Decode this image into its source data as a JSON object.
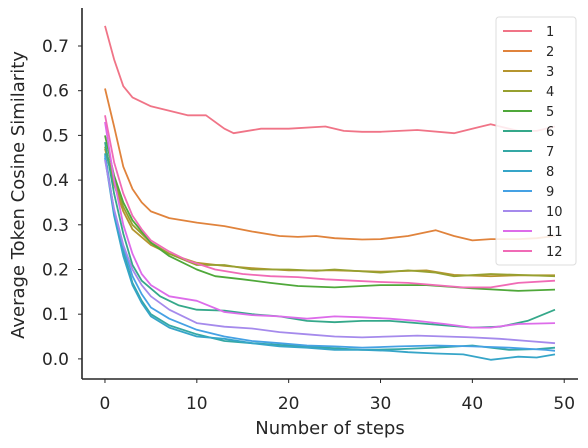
{
  "chart_data": {
    "type": "line",
    "xlabel": "Number of steps",
    "ylabel": "Average Token Cosine Similarity",
    "xlim": [
      -2.5,
      51.5
    ],
    "ylim": [
      -0.045,
      0.785
    ],
    "xticks": [
      0,
      10,
      20,
      30,
      40,
      50
    ],
    "yticks": [
      0.0,
      0.1,
      0.2,
      0.3,
      0.4,
      0.5,
      0.6,
      0.7
    ],
    "legend_position": "top-right",
    "grid": false,
    "series": [
      {
        "name": "1",
        "color": "#f07487",
        "x": [
          0,
          1,
          2,
          3,
          5,
          7,
          9,
          11,
          13,
          14,
          17,
          20,
          24,
          26,
          28,
          30,
          34,
          38,
          42,
          45,
          47,
          49
        ],
        "y": [
          0.745,
          0.67,
          0.61,
          0.585,
          0.565,
          0.555,
          0.545,
          0.545,
          0.515,
          0.505,
          0.515,
          0.515,
          0.52,
          0.51,
          0.508,
          0.508,
          0.512,
          0.505,
          0.525,
          0.51,
          0.51,
          0.52
        ]
      },
      {
        "name": "2",
        "color": "#e0833c",
        "x": [
          0,
          1,
          2,
          3,
          4,
          5,
          7,
          10,
          13,
          16,
          19,
          21,
          23,
          25,
          28,
          30,
          33,
          36,
          38,
          40,
          42,
          45,
          47,
          49
        ],
        "y": [
          0.605,
          0.52,
          0.43,
          0.38,
          0.35,
          0.33,
          0.315,
          0.305,
          0.297,
          0.285,
          0.275,
          0.273,
          0.275,
          0.27,
          0.267,
          0.268,
          0.275,
          0.288,
          0.275,
          0.265,
          0.268,
          0.268,
          0.27,
          0.275
        ]
      },
      {
        "name": "3",
        "color": "#b5952f",
        "x": [
          0,
          1,
          2,
          3,
          5,
          7,
          10,
          13,
          16,
          20,
          25,
          30,
          35,
          38,
          42,
          45,
          49
        ],
        "y": [
          0.47,
          0.39,
          0.33,
          0.29,
          0.255,
          0.235,
          0.215,
          0.208,
          0.203,
          0.198,
          0.198,
          0.195,
          0.198,
          0.188,
          0.185,
          0.187,
          0.187
        ]
      },
      {
        "name": "4",
        "color": "#97a030",
        "x": [
          0,
          1,
          2,
          3,
          5,
          7,
          10,
          13,
          16,
          20,
          23,
          25,
          30,
          33,
          36,
          38,
          42,
          45,
          49
        ],
        "y": [
          0.475,
          0.4,
          0.34,
          0.3,
          0.26,
          0.235,
          0.21,
          0.21,
          0.2,
          0.2,
          0.197,
          0.2,
          0.193,
          0.198,
          0.193,
          0.185,
          0.19,
          0.188,
          0.185
        ]
      },
      {
        "name": "5",
        "color": "#4fa83a",
        "x": [
          0,
          1,
          2,
          3,
          5,
          7,
          10,
          12,
          15,
          18,
          21,
          25,
          30,
          35,
          40,
          45,
          49
        ],
        "y": [
          0.5,
          0.41,
          0.35,
          0.31,
          0.26,
          0.23,
          0.2,
          0.185,
          0.178,
          0.17,
          0.163,
          0.16,
          0.165,
          0.165,
          0.158,
          0.152,
          0.155
        ]
      },
      {
        "name": "6",
        "color": "#35a88a",
        "x": [
          0,
          1,
          2,
          3,
          4,
          6,
          8,
          10,
          13,
          16,
          19,
          22,
          25,
          28,
          31,
          34,
          37,
          40,
          43,
          46,
          49
        ],
        "y": [
          0.485,
          0.37,
          0.28,
          0.21,
          0.175,
          0.14,
          0.12,
          0.11,
          0.108,
          0.1,
          0.095,
          0.085,
          0.082,
          0.085,
          0.085,
          0.08,
          0.075,
          0.07,
          0.072,
          0.085,
          0.11
        ]
      },
      {
        "name": "7",
        "color": "#35a8a5",
        "x": [
          0,
          1,
          2,
          3,
          4,
          5,
          7,
          10,
          13,
          16,
          20,
          24,
          28,
          32,
          36,
          40,
          44,
          47,
          49
        ],
        "y": [
          0.46,
          0.33,
          0.24,
          0.17,
          0.13,
          0.1,
          0.075,
          0.055,
          0.04,
          0.035,
          0.03,
          0.025,
          0.02,
          0.022,
          0.025,
          0.03,
          0.02,
          0.022,
          0.025
        ]
      },
      {
        "name": "8",
        "color": "#36a5c8",
        "x": [
          0,
          1,
          2,
          3,
          4,
          5,
          7,
          10,
          13,
          16,
          19,
          22,
          25,
          28,
          31,
          33,
          36,
          39,
          42,
          45,
          47,
          49
        ],
        "y": [
          0.45,
          0.32,
          0.23,
          0.165,
          0.125,
          0.095,
          0.07,
          0.05,
          0.045,
          0.035,
          0.028,
          0.025,
          0.02,
          0.02,
          0.018,
          0.015,
          0.012,
          0.01,
          -0.002,
          0.005,
          0.003,
          0.01
        ]
      },
      {
        "name": "9",
        "color": "#45a1e4",
        "x": [
          0,
          1,
          2,
          3,
          4,
          5,
          7,
          10,
          13,
          16,
          19,
          22,
          25,
          28,
          32,
          36,
          40,
          44,
          48,
          49
        ],
        "y": [
          0.455,
          0.33,
          0.25,
          0.185,
          0.145,
          0.115,
          0.09,
          0.065,
          0.05,
          0.04,
          0.035,
          0.03,
          0.028,
          0.025,
          0.028,
          0.03,
          0.028,
          0.025,
          0.02,
          0.018
        ]
      },
      {
        "name": "10",
        "color": "#a58aec",
        "x": [
          0,
          1,
          2,
          3,
          4,
          5,
          7,
          10,
          13,
          16,
          19,
          22,
          25,
          28,
          31,
          34,
          37,
          40,
          43,
          46,
          49
        ],
        "y": [
          0.445,
          0.335,
          0.255,
          0.2,
          0.165,
          0.14,
          0.11,
          0.08,
          0.072,
          0.068,
          0.06,
          0.055,
          0.05,
          0.048,
          0.05,
          0.052,
          0.05,
          0.048,
          0.045,
          0.04,
          0.035
        ]
      },
      {
        "name": "11",
        "color": "#dd6cea",
        "x": [
          0,
          1,
          2,
          3,
          4,
          5,
          7,
          10,
          13,
          16,
          19,
          22,
          25,
          28,
          31,
          34,
          37,
          40,
          42,
          45,
          49
        ],
        "y": [
          0.53,
          0.4,
          0.3,
          0.235,
          0.19,
          0.165,
          0.14,
          0.13,
          0.105,
          0.098,
          0.095,
          0.09,
          0.095,
          0.093,
          0.09,
          0.085,
          0.078,
          0.07,
          0.07,
          0.078,
          0.08
        ]
      },
      {
        "name": "12",
        "color": "#f06bb6",
        "x": [
          0,
          1,
          2,
          3,
          4,
          5,
          7,
          9,
          12,
          15,
          18,
          21,
          24,
          27,
          30,
          33,
          36,
          39,
          42,
          45,
          49
        ],
        "y": [
          0.545,
          0.44,
          0.37,
          0.32,
          0.29,
          0.265,
          0.24,
          0.22,
          0.2,
          0.19,
          0.185,
          0.183,
          0.178,
          0.175,
          0.172,
          0.17,
          0.165,
          0.16,
          0.16,
          0.17,
          0.175
        ]
      }
    ]
  }
}
